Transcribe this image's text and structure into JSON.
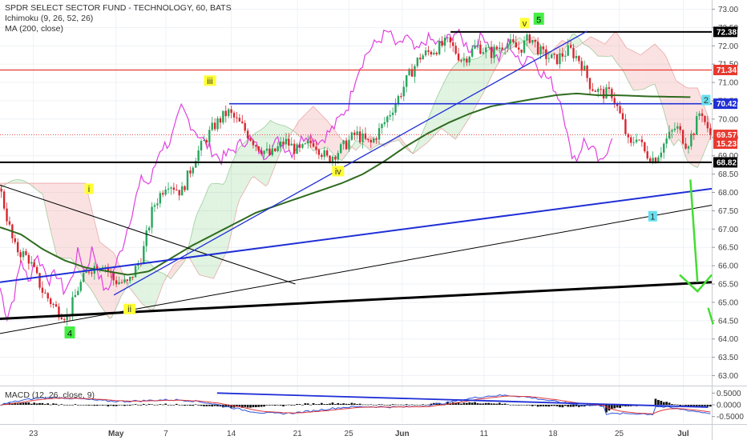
{
  "chart_data": {
    "type": "candlestick",
    "title": "SPDR SELECT SECTOR FUND - TECHNOLOGY, 60, BATS",
    "indicators": [
      "Ichimoku (9, 26, 52, 26)",
      "MA (200, close)"
    ],
    "macd_label": "MACD (12, 26, close, 9)",
    "y_ticks": [
      "73.00",
      "72.50",
      "72.00",
      "71.50",
      "71.00",
      "70.50",
      "70.00",
      "69.50",
      "69.00",
      "68.50",
      "68.00",
      "67.50",
      "67.00",
      "66.50",
      "66.00",
      "65.50",
      "65.00",
      "64.50",
      "64.00",
      "63.50",
      "63.00"
    ],
    "y_range": [
      62.75,
      73.25
    ],
    "macd_ticks": [
      "0.5000",
      "0.0000",
      "-0.5000"
    ],
    "macd_range": [
      -0.75,
      0.75
    ],
    "x_ticks": [
      "23",
      "May",
      "7",
      "14",
      "21",
      "25",
      "Jun",
      "11",
      "18",
      "25",
      "Jul"
    ],
    "price_tags": [
      {
        "value": 72.38,
        "label": "72.38",
        "color": "#000000"
      },
      {
        "value": 71.34,
        "label": "71.34",
        "color": "#e8392f"
      },
      {
        "value": 70.42,
        "label": "70.42",
        "color": "#1f2fd6"
      },
      {
        "value": 69.57,
        "label": "69.57",
        "color": "#e8392f"
      },
      {
        "value": 69.33,
        "label": "15.23",
        "color": "#e8392f"
      },
      {
        "value": 68.82,
        "label": "68.82",
        "color": "#000000"
      }
    ],
    "wave_labels": [
      {
        "text": "i",
        "color": "#ffff33",
        "t": 0.125,
        "v": 68.1
      },
      {
        "text": "ii",
        "color": "#ffff33",
        "t": 0.182,
        "v": 64.82
      },
      {
        "text": "iii",
        "color": "#ffff33",
        "t": 0.295,
        "v": 71.05
      },
      {
        "text": "iv",
        "color": "#ffff33",
        "t": 0.475,
        "v": 68.58
      },
      {
        "text": "v",
        "color": "#ffff33",
        "t": 0.737,
        "v": 72.62
      },
      {
        "text": "5",
        "color": "#44ee44",
        "t": 0.757,
        "v": 72.74
      },
      {
        "text": "4",
        "color": "#44ee44",
        "t": 0.098,
        "v": 64.18
      },
      {
        "text": "1",
        "color": "#66e0f0",
        "t": 0.917,
        "v": 67.35
      },
      {
        "text": "2",
        "color": "#66e0f0",
        "t": 0.992,
        "v": 70.52
      }
    ]
  }
}
